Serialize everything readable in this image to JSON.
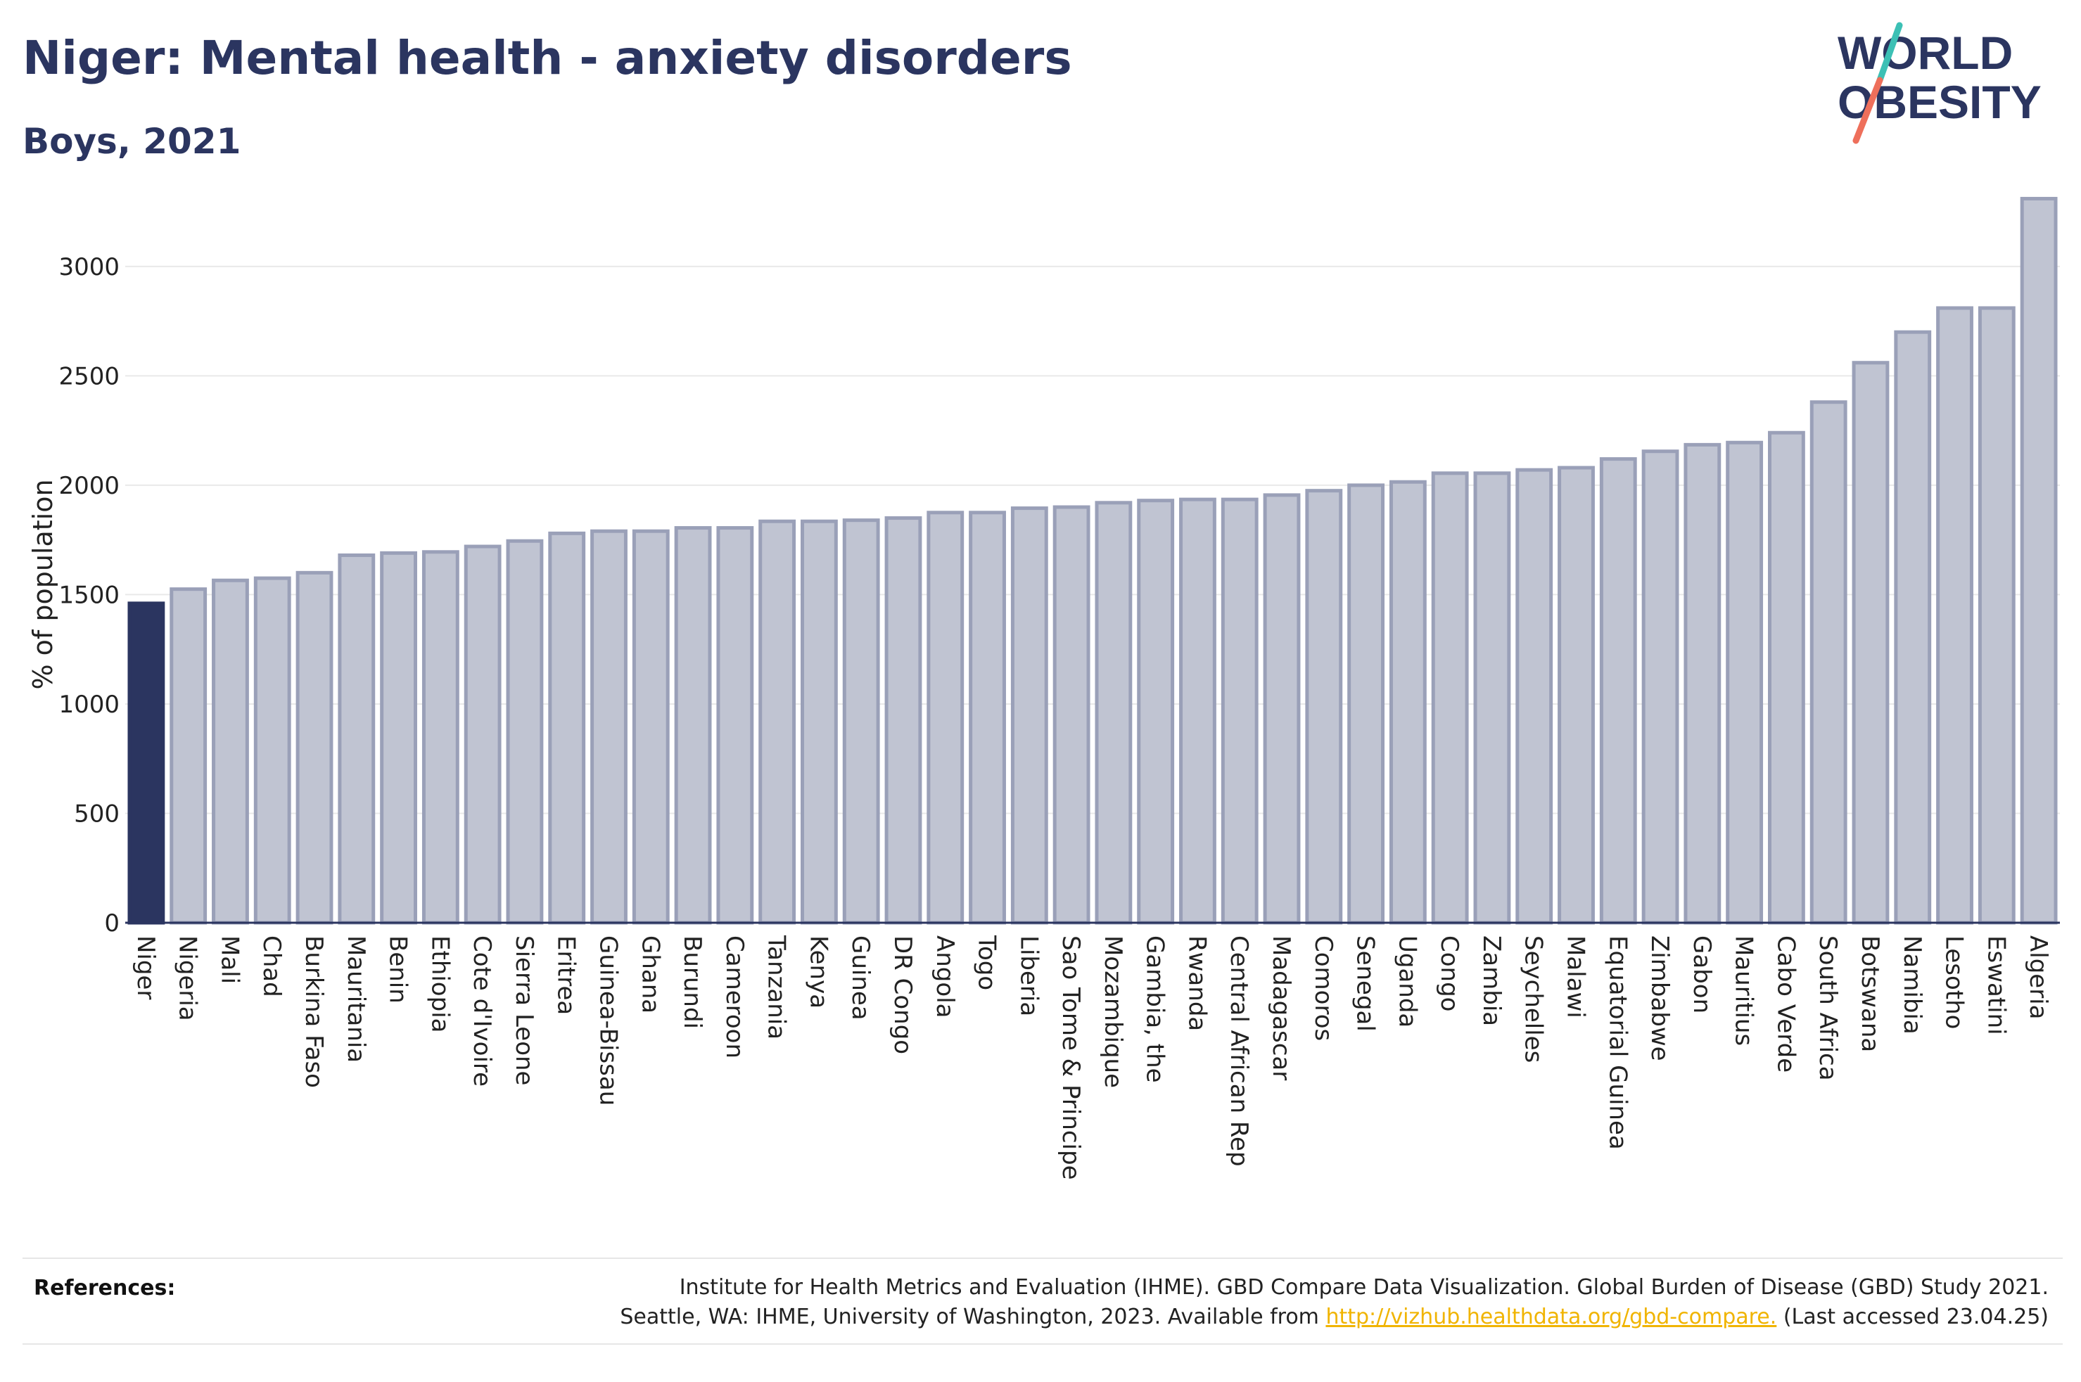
{
  "header": {
    "title": "Niger: Mental health - anxiety disorders",
    "subtitle": "Boys, 2021"
  },
  "logo": {
    "line1": "WORLD",
    "line2": "OBESITY"
  },
  "colors": {
    "highlight_bar": "#2b3560",
    "bar_fill": "#c0c4d2",
    "bar_stroke": "#9aa0b8",
    "text": "#2b3560",
    "gridline": "#e9e9e9",
    "logo_slash_top": "#3cc0b5",
    "logo_slash_bottom": "#ee6f5b",
    "link": "#f0b400"
  },
  "chart_data": {
    "type": "bar",
    "ylabel": "% of population",
    "xlabel": "",
    "ylim": [
      0,
      3350
    ],
    "yticks": [
      0,
      500,
      1000,
      1500,
      2000,
      2500,
      3000
    ],
    "grid": true,
    "highlight": "Niger",
    "categories": [
      "Niger",
      "Nigeria",
      "Mali",
      "Chad",
      "Burkina Faso",
      "Mauritania",
      "Benin",
      "Ethiopia",
      "Cote d'Ivoire",
      "Sierra Leone",
      "Eritrea",
      "Guinea-Bissau",
      "Ghana",
      "Burundi",
      "Cameroon",
      "Tanzania",
      "Kenya",
      "Guinea",
      "DR Congo",
      "Angola",
      "Togo",
      "Liberia",
      "Sao Tome & Principe",
      "Mozambique",
      "Gambia, the",
      "Rwanda",
      "Central African Rep",
      "Madagascar",
      "Comoros",
      "Senegal",
      "Uganda",
      "Congo",
      "Zambia",
      "Seychelles",
      "Malawi",
      "Equatorial Guinea",
      "Zimbabwe",
      "Gabon",
      "Mauritius",
      "Cabo Verde",
      "South Africa",
      "Botswana",
      "Namibia",
      "Lesotho",
      "Eswatini",
      "Algeria"
    ],
    "values": [
      1460,
      1525,
      1565,
      1575,
      1600,
      1680,
      1690,
      1695,
      1720,
      1745,
      1780,
      1790,
      1790,
      1805,
      1805,
      1835,
      1835,
      1840,
      1850,
      1875,
      1875,
      1895,
      1900,
      1920,
      1930,
      1935,
      1935,
      1955,
      1975,
      2000,
      2015,
      2055,
      2055,
      2070,
      2080,
      2120,
      2155,
      2185,
      2195,
      2240,
      2380,
      2560,
      2700,
      2810,
      2810,
      3310
    ]
  },
  "references": {
    "label": "References:",
    "line1": "Institute for Health Metrics and Evaluation (IHME). GBD Compare Data Visualization. Global Burden of Disease (GBD) Study 2021.",
    "line2_prefix": "Seattle, WA: IHME, University of Washington, 2023. Available from ",
    "link": "http://vizhub.healthdata.org/gbd-compare.",
    "line2_suffix": " (Last accessed 23.04.25)"
  }
}
